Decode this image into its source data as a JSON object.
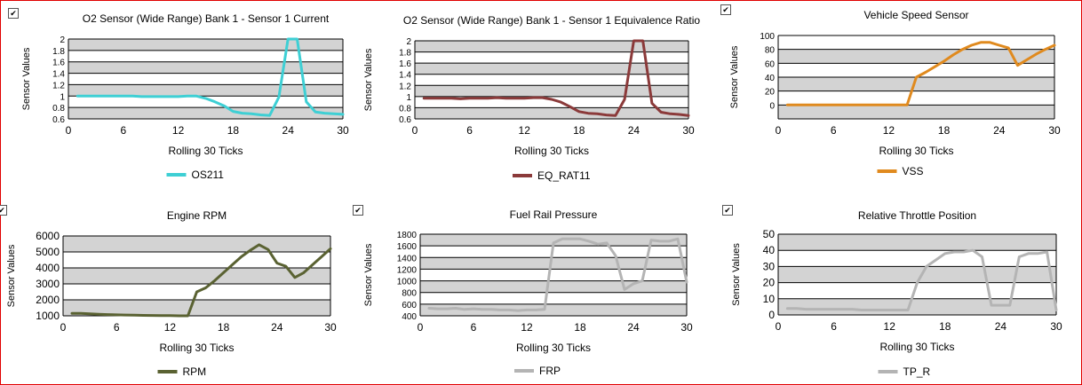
{
  "window": {
    "border_color": "#e00000"
  },
  "checkbox_mark": "✔",
  "chart_data": [
    {
      "type": "line",
      "title": "O2 Sensor (Wide Range) Bank 1 - Sensor 1 Current",
      "xlabel": "Rolling 30 Ticks",
      "ylabel": "Sensor Values",
      "xlim": [
        0,
        30
      ],
      "ylim": [
        0.6,
        2
      ],
      "xticks": [
        0,
        6,
        12,
        18,
        24,
        30
      ],
      "yticks": [
        0.6,
        0.8,
        1,
        1.2,
        1.4,
        1.6,
        1.8,
        2
      ],
      "ytick_labels": [
        "0.6",
        "0.8",
        "1",
        "1.2",
        "1.4",
        "1.6",
        "1.8",
        "2"
      ],
      "series": [
        {
          "name": "OS211",
          "color": "#3ecfd4",
          "x": [
            1,
            2,
            3,
            4,
            5,
            6,
            7,
            8,
            9,
            10,
            11,
            12,
            13,
            14,
            15,
            16,
            17,
            18,
            19,
            20,
            21,
            22,
            23,
            24,
            25,
            26,
            27,
            28,
            29,
            30
          ],
          "values": [
            1.0,
            1.0,
            1.0,
            1.0,
            1.0,
            1.0,
            1.0,
            0.99,
            0.99,
            0.99,
            0.99,
            0.99,
            1.0,
            1.0,
            0.96,
            0.9,
            0.83,
            0.73,
            0.7,
            0.69,
            0.67,
            0.66,
            0.98,
            2.0,
            2.0,
            0.9,
            0.72,
            0.7,
            0.69,
            0.68
          ]
        }
      ]
    },
    {
      "type": "line",
      "title": "O2 Sensor (Wide Range) Bank 1 - Sensor 1 Equivalence Ratio",
      "xlabel": "Rolling 30 Ticks",
      "ylabel": "Sensor Values",
      "xlim": [
        0,
        30
      ],
      "ylim": [
        0.6,
        2
      ],
      "xticks": [
        0,
        6,
        12,
        18,
        24,
        30
      ],
      "yticks": [
        0.6,
        0.8,
        1,
        1.2,
        1.4,
        1.6,
        1.8,
        2
      ],
      "ytick_labels": [
        "0.6",
        "0.8",
        "1",
        "1.2",
        "1.4",
        "1.6",
        "1.8",
        "2"
      ],
      "series": [
        {
          "name": "EQ_RAT11",
          "color": "#8b3a3a",
          "x": [
            1,
            2,
            3,
            4,
            5,
            6,
            7,
            8,
            9,
            10,
            11,
            12,
            13,
            14,
            15,
            16,
            17,
            18,
            19,
            20,
            21,
            22,
            23,
            24,
            25,
            26,
            27,
            28,
            29,
            30
          ],
          "values": [
            0.97,
            0.97,
            0.97,
            0.97,
            0.96,
            0.97,
            0.97,
            0.97,
            0.98,
            0.97,
            0.97,
            0.97,
            0.98,
            0.98,
            0.95,
            0.9,
            0.82,
            0.73,
            0.7,
            0.69,
            0.67,
            0.66,
            0.95,
            2.0,
            2.0,
            0.88,
            0.72,
            0.69,
            0.68,
            0.66
          ]
        }
      ]
    },
    {
      "type": "line",
      "title": "Vehicle Speed Sensor",
      "xlabel": "Rolling 30 Ticks",
      "ylabel": "Sensor Values",
      "xlim": [
        0,
        30
      ],
      "ylim": [
        -20,
        100
      ],
      "xticks": [
        0,
        6,
        12,
        18,
        24,
        30
      ],
      "yticks": [
        -20,
        0,
        20,
        40,
        60,
        80,
        100
      ],
      "ytick_labels": [
        "",
        "0",
        "20",
        "40",
        "60",
        "80",
        "100"
      ],
      "series": [
        {
          "name": "VSS",
          "color": "#e08a1e",
          "x": [
            1,
            2,
            3,
            4,
            5,
            6,
            7,
            8,
            9,
            10,
            11,
            12,
            13,
            14,
            15,
            16,
            17,
            18,
            19,
            20,
            21,
            22,
            23,
            24,
            25,
            26,
            27,
            28,
            29,
            30
          ],
          "values": [
            0,
            0,
            0,
            0,
            0,
            0,
            0,
            0,
            0,
            0,
            0,
            0,
            0,
            0,
            40,
            47,
            55,
            63,
            72,
            80,
            86,
            90,
            90,
            86,
            82,
            57,
            65,
            73,
            80,
            86
          ]
        }
      ]
    },
    {
      "type": "line",
      "title": "Engine RPM",
      "xlabel": "Rolling 30 Ticks",
      "ylabel": "Sensor Values",
      "xlim": [
        0,
        30
      ],
      "ylim": [
        1000,
        6000
      ],
      "xticks": [
        0,
        6,
        12,
        18,
        24,
        30
      ],
      "yticks": [
        1000,
        2000,
        3000,
        4000,
        5000,
        6000
      ],
      "ytick_labels": [
        "1000",
        "2000",
        "3000",
        "4000",
        "5000",
        "6000"
      ],
      "series": [
        {
          "name": "RPM",
          "color": "#5a6232",
          "x": [
            1,
            2,
            3,
            4,
            5,
            6,
            7,
            8,
            9,
            10,
            11,
            12,
            13,
            14,
            15,
            16,
            17,
            18,
            19,
            20,
            21,
            22,
            23,
            24,
            25,
            26,
            27,
            28,
            29,
            30
          ],
          "values": [
            1150,
            1150,
            1120,
            1100,
            1080,
            1060,
            1050,
            1040,
            1030,
            1020,
            1010,
            1010,
            1000,
            1000,
            2500,
            2750,
            3200,
            3700,
            4200,
            4700,
            5100,
            5450,
            5150,
            4300,
            4100,
            3400,
            3700,
            4200,
            4700,
            5200
          ]
        }
      ]
    },
    {
      "type": "line",
      "title": "Fuel Rail Pressure",
      "xlabel": "Rolling 30 Ticks",
      "ylabel": "Sensor Values",
      "xlim": [
        0,
        30
      ],
      "ylim": [
        400,
        1800
      ],
      "xticks": [
        0,
        6,
        12,
        18,
        24,
        30
      ],
      "yticks": [
        400,
        600,
        800,
        1000,
        1200,
        1400,
        1600,
        1800
      ],
      "ytick_labels": [
        "400",
        "600",
        "800",
        "1000",
        "1200",
        "1400",
        "1600",
        "1800"
      ],
      "series": [
        {
          "name": "FRP",
          "color": "#b4b4b4",
          "x": [
            1,
            2,
            3,
            4,
            5,
            6,
            7,
            8,
            9,
            10,
            11,
            12,
            13,
            14,
            15,
            16,
            17,
            18,
            19,
            20,
            21,
            22,
            23,
            24,
            25,
            26,
            27,
            28,
            29,
            30
          ],
          "values": [
            530,
            520,
            520,
            530,
            510,
            520,
            510,
            510,
            500,
            500,
            490,
            500,
            500,
            510,
            1650,
            1720,
            1720,
            1720,
            1680,
            1630,
            1650,
            1430,
            850,
            950,
            1000,
            1700,
            1680,
            1680,
            1720,
            980
          ]
        }
      ]
    },
    {
      "type": "line",
      "title": "Relative Throttle Position",
      "xlabel": "Rolling 30 Ticks",
      "ylabel": "Sensor Values",
      "xlim": [
        0,
        30
      ],
      "ylim": [
        0,
        50
      ],
      "xticks": [
        0,
        6,
        12,
        18,
        24,
        30
      ],
      "yticks": [
        0,
        10,
        20,
        30,
        40,
        50
      ],
      "ytick_labels": [
        "0",
        "10",
        "20",
        "30",
        "40",
        "50"
      ],
      "series": [
        {
          "name": "TP_R",
          "color": "#b4b4b4",
          "x": [
            1,
            2,
            3,
            4,
            5,
            6,
            7,
            8,
            9,
            10,
            11,
            12,
            13,
            14,
            15,
            16,
            17,
            18,
            19,
            20,
            21,
            22,
            23,
            24,
            25,
            26,
            27,
            28,
            29,
            30
          ],
          "values": [
            4,
            4,
            3.5,
            3.5,
            3.5,
            3.5,
            3.5,
            3.5,
            3,
            3,
            3,
            3,
            3,
            3,
            20,
            30,
            34,
            38,
            39,
            39,
            40,
            36,
            6,
            6,
            6,
            36,
            38,
            38,
            39,
            3
          ]
        }
      ]
    }
  ]
}
